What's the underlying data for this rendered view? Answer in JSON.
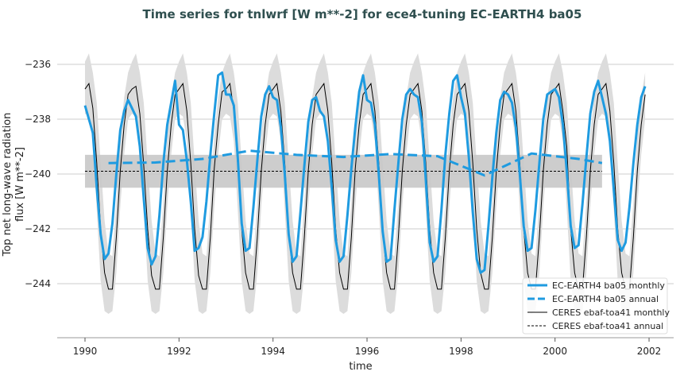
{
  "chart_data": {
    "type": "line",
    "title": "Time series for tnlwrf [W m**-2] for ece4-tuning EC-EARTH4 ba05",
    "xlabel": "time",
    "ylabel": [
      "Top net long-wave radiation",
      "flux [W m**-2]"
    ],
    "xlim": [
      1989.4,
      2002.5
    ],
    "ylim": [
      -245.9,
      -234.8
    ],
    "xticks": [
      1990,
      1992,
      1994,
      1996,
      1998,
      2000,
      2002
    ],
    "yticks": [
      -236,
      -238,
      -240,
      -242,
      -244
    ],
    "grid": "horizontal",
    "legend_position": "lower-right",
    "colors": {
      "model": "#1f9be0",
      "obs": "#000000",
      "band": "#dcdcdc",
      "annual_band": "#c8c8c8"
    },
    "monthly_start_year": 1990,
    "series": [
      {
        "name": "EC-EARTH4 ba05 monthly",
        "style": "solid-thick",
        "values": [
          -237.5,
          -238.0,
          -238.5,
          -240.5,
          -242.2,
          -243.1,
          -242.9,
          -241.8,
          -240.0,
          -238.4,
          -237.7,
          -237.3,
          -237.6,
          -237.9,
          -239.0,
          -240.9,
          -242.7,
          -243.3,
          -243.0,
          -241.5,
          -239.6,
          -238.2,
          -237.4,
          -236.6,
          -238.2,
          -238.4,
          -239.5,
          -241.0,
          -242.8,
          -242.7,
          -242.3,
          -241.0,
          -239.3,
          -237.8,
          -236.4,
          -236.3,
          -237.1,
          -237.1,
          -237.5,
          -239.4,
          -241.8,
          -242.8,
          -242.7,
          -241.2,
          -239.5,
          -237.9,
          -237.1,
          -236.8,
          -237.2,
          -237.3,
          -238.3,
          -240.0,
          -242.2,
          -243.2,
          -243.0,
          -241.4,
          -239.7,
          -238.1,
          -237.3,
          -237.2,
          -237.7,
          -237.9,
          -238.8,
          -240.5,
          -242.4,
          -243.2,
          -243.0,
          -241.5,
          -239.8,
          -238.3,
          -237.0,
          -236.4,
          -237.3,
          -237.4,
          -238.2,
          -240.0,
          -242.1,
          -243.2,
          -243.1,
          -241.3,
          -239.6,
          -238.0,
          -237.1,
          -236.9,
          -237.1,
          -237.2,
          -238.1,
          -240.2,
          -242.5,
          -243.2,
          -243.0,
          -241.3,
          -239.3,
          -237.8,
          -236.6,
          -236.4,
          -237.2,
          -237.8,
          -239.4,
          -241.4,
          -243.1,
          -243.6,
          -243.5,
          -241.9,
          -240.1,
          -238.5,
          -237.3,
          -237.0,
          -237.1,
          -237.4,
          -238.3,
          -240.0,
          -241.9,
          -242.8,
          -242.7,
          -241.3,
          -239.6,
          -238.0,
          -237.1,
          -237.0,
          -236.9,
          -237.2,
          -238.2,
          -239.9,
          -241.9,
          -242.7,
          -242.6,
          -241.1,
          -239.4,
          -237.8,
          -237.0,
          -236.6,
          -237.2,
          -237.8,
          -238.8,
          -240.6,
          -242.4,
          -242.8,
          -242.5,
          -241.2,
          -239.6,
          -238.2,
          -237.2,
          -236.8
        ]
      },
      {
        "name": "EC-EARTH4 ba05 annual",
        "style": "dashed-thick",
        "x": [
          1990.5,
          1991.5,
          1992.5,
          1993.5,
          1994.5,
          1995.5,
          1996.5,
          1997.5,
          1998.5,
          1999.5,
          2000.5,
          2001.0
        ],
        "values": [
          -239.6,
          -239.58,
          -239.45,
          -239.15,
          -239.3,
          -239.38,
          -239.27,
          -239.35,
          -240.05,
          -239.25,
          -239.45,
          -239.6
        ]
      },
      {
        "name": "CERES ebaf-toa41 monthly",
        "style": "solid-thin",
        "values": [
          -236.9,
          -236.7,
          -237.6,
          -239.6,
          -242.0,
          -243.6,
          -244.2,
          -244.2,
          -242.3,
          -239.9,
          -238.2,
          -237.1,
          -236.9,
          -236.8,
          -237.8,
          -239.7,
          -242.0,
          -243.7,
          -244.2,
          -244.2,
          -242.3,
          -239.9,
          -238.2,
          -237.1,
          -236.9,
          -236.7,
          -237.7,
          -239.6,
          -242.0,
          -243.7,
          -244.2,
          -244.2,
          -242.3,
          -239.8,
          -238.2,
          -237.0,
          -236.9,
          -236.7,
          -237.7,
          -239.7,
          -242.0,
          -243.6,
          -244.2,
          -244.2,
          -242.3,
          -239.9,
          -238.2,
          -237.1,
          -236.9,
          -236.7,
          -237.7,
          -239.6,
          -242.0,
          -243.6,
          -244.2,
          -244.2,
          -242.3,
          -239.9,
          -238.2,
          -237.1,
          -236.9,
          -236.7,
          -237.7,
          -239.6,
          -242.0,
          -243.6,
          -244.2,
          -244.2,
          -242.3,
          -239.8,
          -238.2,
          -237.1,
          -236.9,
          -236.7,
          -237.7,
          -239.6,
          -242.0,
          -243.6,
          -244.2,
          -244.2,
          -242.3,
          -239.9,
          -238.2,
          -237.1,
          -236.9,
          -236.7,
          -237.7,
          -239.6,
          -242.0,
          -243.6,
          -244.2,
          -244.2,
          -242.3,
          -239.9,
          -238.2,
          -237.1,
          -236.9,
          -236.7,
          -237.7,
          -239.6,
          -242.0,
          -243.6,
          -244.2,
          -244.2,
          -242.3,
          -239.9,
          -238.2,
          -237.1,
          -236.9,
          -236.7,
          -237.7,
          -239.6,
          -242.0,
          -243.6,
          -244.2,
          -244.2,
          -242.3,
          -239.9,
          -238.2,
          -237.1,
          -236.9,
          -236.7,
          -237.7,
          -239.0,
          -242.0,
          -243.6,
          -244.2,
          -244.2,
          -242.3,
          -239.9,
          -238.2,
          -237.1,
          -236.9,
          -236.7,
          -237.7,
          -239.6,
          -242.0,
          -243.6,
          -244.2,
          -244.2,
          -242.3,
          -239.9,
          -238.2,
          -237.1
        ],
        "band_upper_climatology": [
          -235.9,
          -235.6,
          -236.3,
          -237.4,
          -239.6,
          -241.7,
          -242.9,
          -243.0,
          -241.0,
          -238.6,
          -237.2,
          -236.3
        ],
        "band_lower_climatology": [
          -237.8,
          -237.9,
          -238.8,
          -241.3,
          -243.9,
          -245.0,
          -245.1,
          -245.0,
          -243.6,
          -241.2,
          -239.3,
          -238.0
        ]
      },
      {
        "name": "CERES ebaf-toa41 annual",
        "style": "dashed-thin",
        "x": [
          1990,
          2001
        ],
        "values": [
          -239.9,
          -239.9
        ],
        "band": [
          -240.5,
          -239.3
        ]
      }
    ]
  }
}
